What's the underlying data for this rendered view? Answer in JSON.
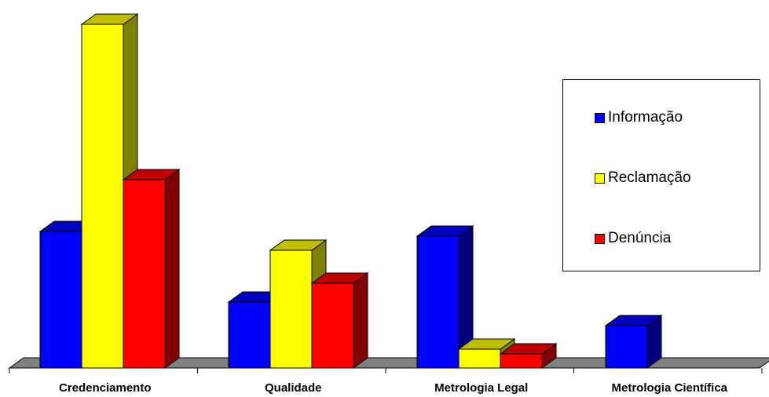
{
  "chart_data": {
    "type": "bar",
    "style": "3d-clustered-column",
    "categories": [
      "Credenciamento",
      "Qualidade",
      "Metrologia Legal",
      "Metrologia Científica"
    ],
    "series": [
      {
        "name": "Informação",
        "color": "#0000FF",
        "values": [
          29,
          14,
          28,
          9
        ]
      },
      {
        "name": "Reclamação",
        "color": "#FFFF00",
        "values": [
          73,
          25,
          4,
          0
        ]
      },
      {
        "name": "Denúncia",
        "color": "#FF0000",
        "values": [
          40,
          18,
          3,
          0
        ]
      }
    ],
    "title": "",
    "xlabel": "",
    "ylabel": "",
    "ylim": [
      0,
      75
    ],
    "grid": false,
    "legend": "right"
  }
}
